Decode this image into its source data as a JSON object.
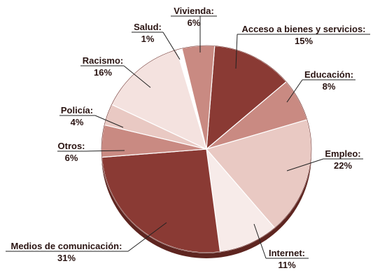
{
  "chart_data": {
    "type": "pie",
    "title": "",
    "slices": [
      {
        "label": "Acceso a bienes y servicios:",
        "value": 15,
        "pct_label": "15%",
        "color": "#8a3a34"
      },
      {
        "label": "Educación:",
        "value": 8,
        "pct_label": "8%",
        "color": "#c98a82"
      },
      {
        "label": "Empleo:",
        "value": 22,
        "pct_label": "22%",
        "color": "#e9c9c3"
      },
      {
        "label": "Internet:",
        "value": 11,
        "pct_label": "11%",
        "color": "#f7ebe9"
      },
      {
        "label": "Medios de comunicación:",
        "value": 31,
        "pct_label": "31%",
        "color": "#8a3a34"
      },
      {
        "label": "Otros:",
        "value": 6,
        "pct_label": "6%",
        "color": "#c98a82"
      },
      {
        "label": "Policía:",
        "value": 4,
        "pct_label": "4%",
        "color": "#e9c9c3"
      },
      {
        "label": "Racismo:",
        "value": 16,
        "pct_label": "16%",
        "color": "#f4e2df"
      },
      {
        "label": "Salud:",
        "value": 1,
        "pct_label": "1%",
        "color": "#ffffff"
      },
      {
        "label": "Vivienda:",
        "value": 6,
        "pct_label": "6%",
        "color": "#c98a82"
      }
    ]
  }
}
